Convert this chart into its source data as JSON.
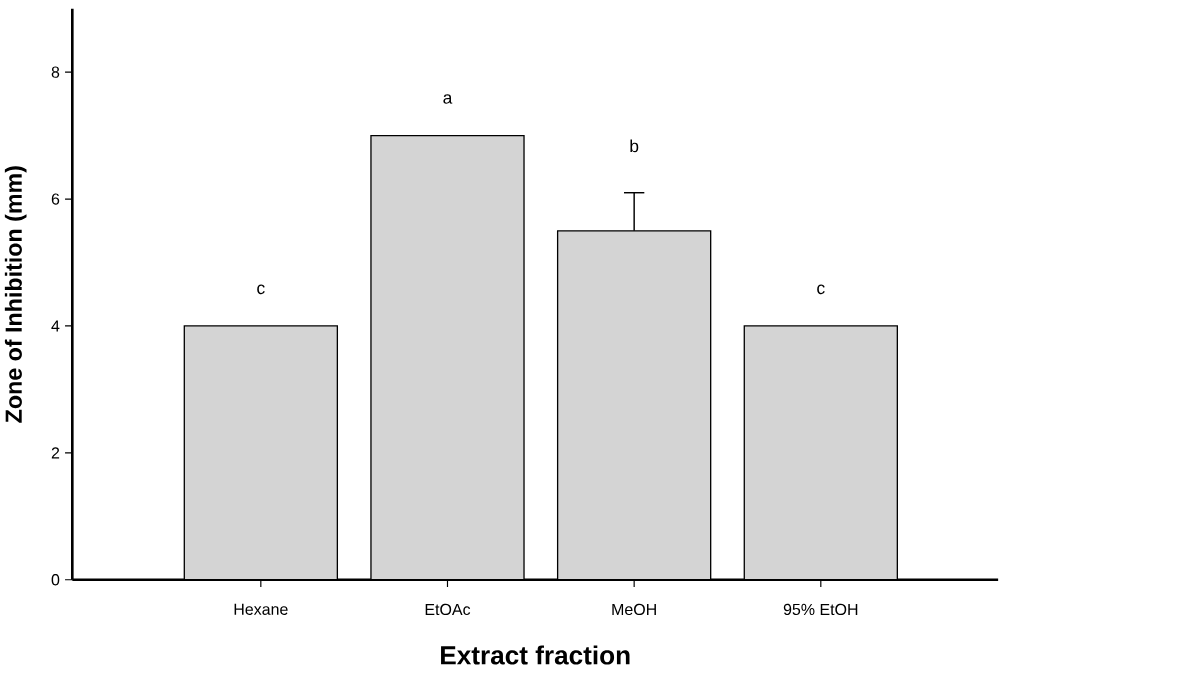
{
  "chart_data": {
    "type": "bar",
    "xlabel": "Extract fraction",
    "ylabel": "Zone of Inhibition (mm)",
    "categories": [
      "Hexane",
      "EtOAc",
      "MeOH",
      "95% EtOH"
    ],
    "values": [
      4,
      7,
      5.5,
      4
    ],
    "errors": [
      null,
      null,
      [
        5.5,
        6.1
      ],
      null
    ],
    "color": "#d4d4d4",
    "ylim": [
      0,
      9
    ],
    "yticks": [
      0,
      2,
      4,
      6,
      8
    ],
    "annotations": [
      "c",
      "a",
      "b",
      "c"
    ]
  }
}
